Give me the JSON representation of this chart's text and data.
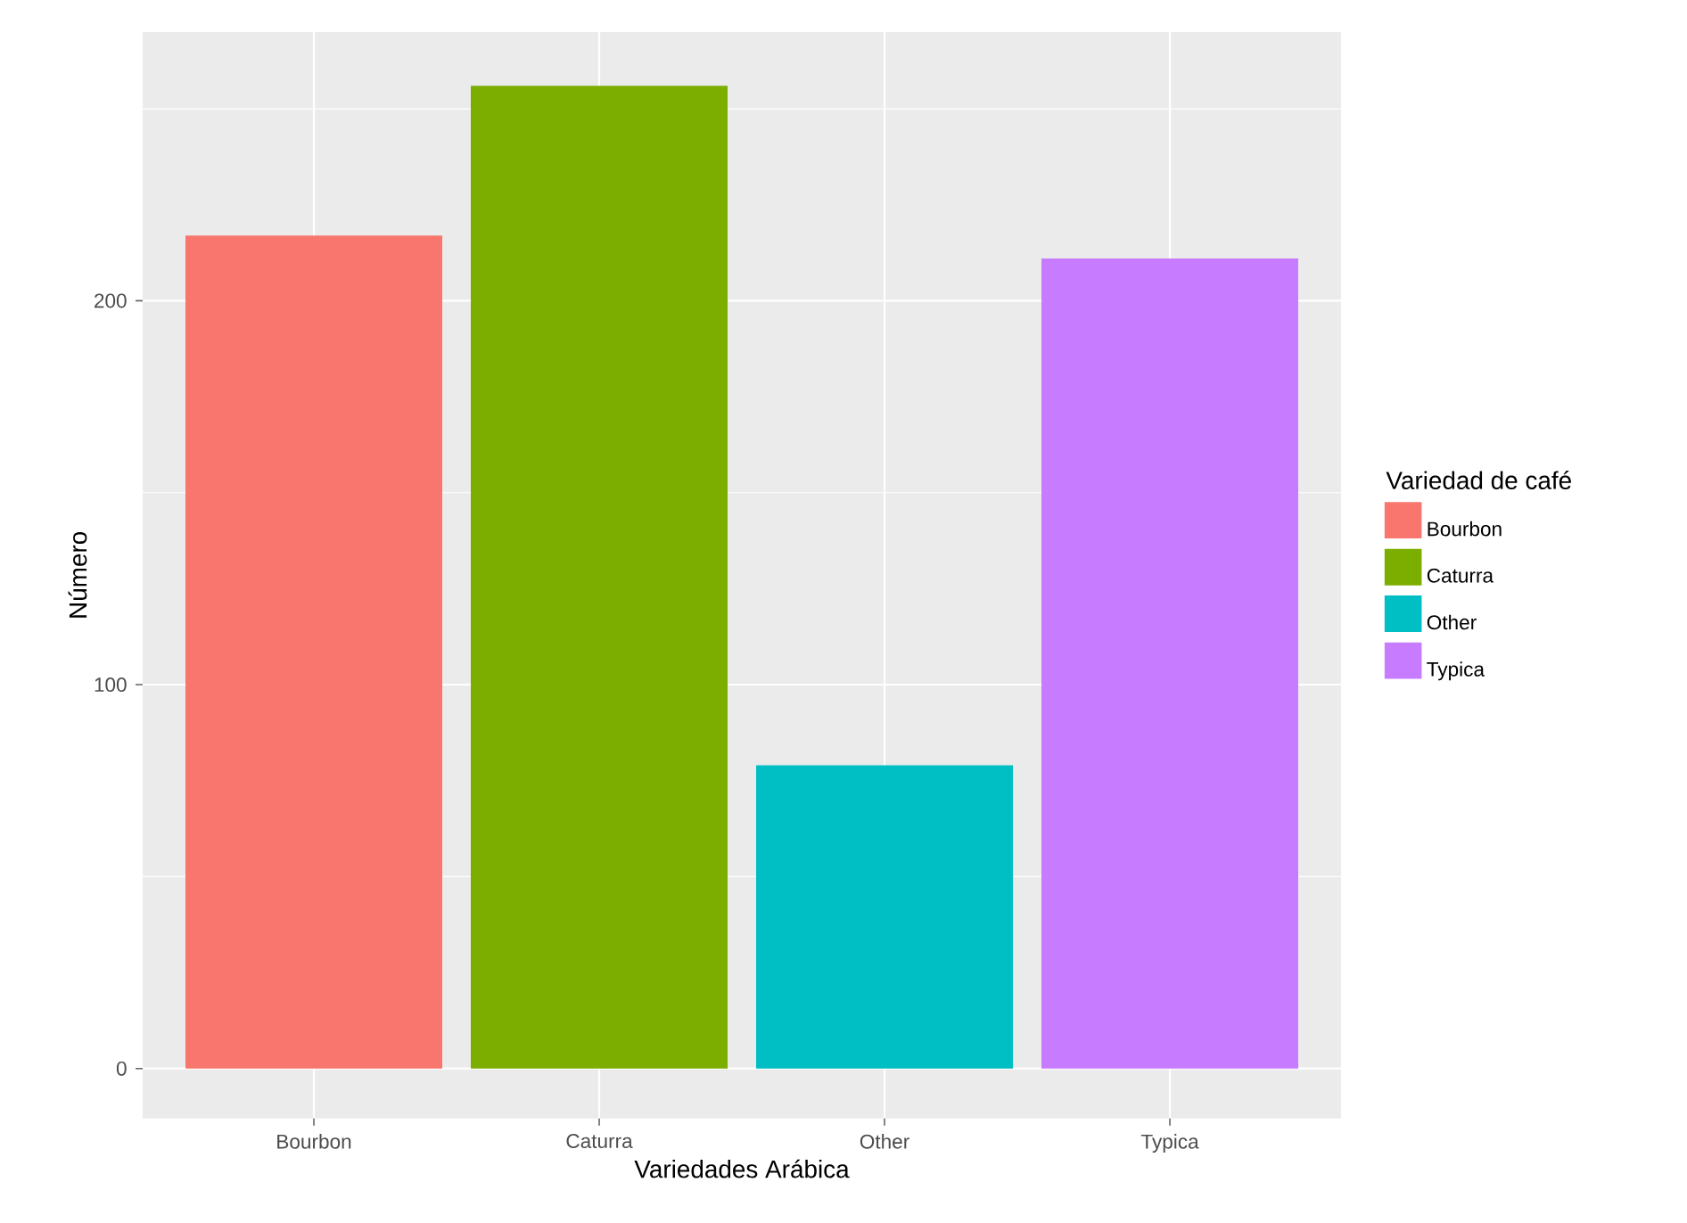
{
  "chart_data": {
    "type": "bar",
    "xlabel": "Variedades Arábica",
    "ylabel": "Número",
    "legend_title": "Variedad de café",
    "categories": [
      "Bourbon",
      "Caturra",
      "Other",
      "Typica"
    ],
    "series": [
      {
        "name": "Bourbon",
        "color": "#f8766d",
        "values": [
          217,
          null,
          null,
          null
        ]
      },
      {
        "name": "Caturra",
        "color": "#7cae00",
        "values": [
          null,
          256,
          null,
          null
        ]
      },
      {
        "name": "Other",
        "color": "#00bfc4",
        "values": [
          null,
          null,
          79,
          null
        ]
      },
      {
        "name": "Typica",
        "color": "#c77cff",
        "values": [
          null,
          null,
          null,
          211
        ]
      }
    ],
    "ylim": [
      -13,
      270
    ],
    "yticks": [
      0,
      100,
      200
    ],
    "grid": true,
    "legend": "right"
  }
}
